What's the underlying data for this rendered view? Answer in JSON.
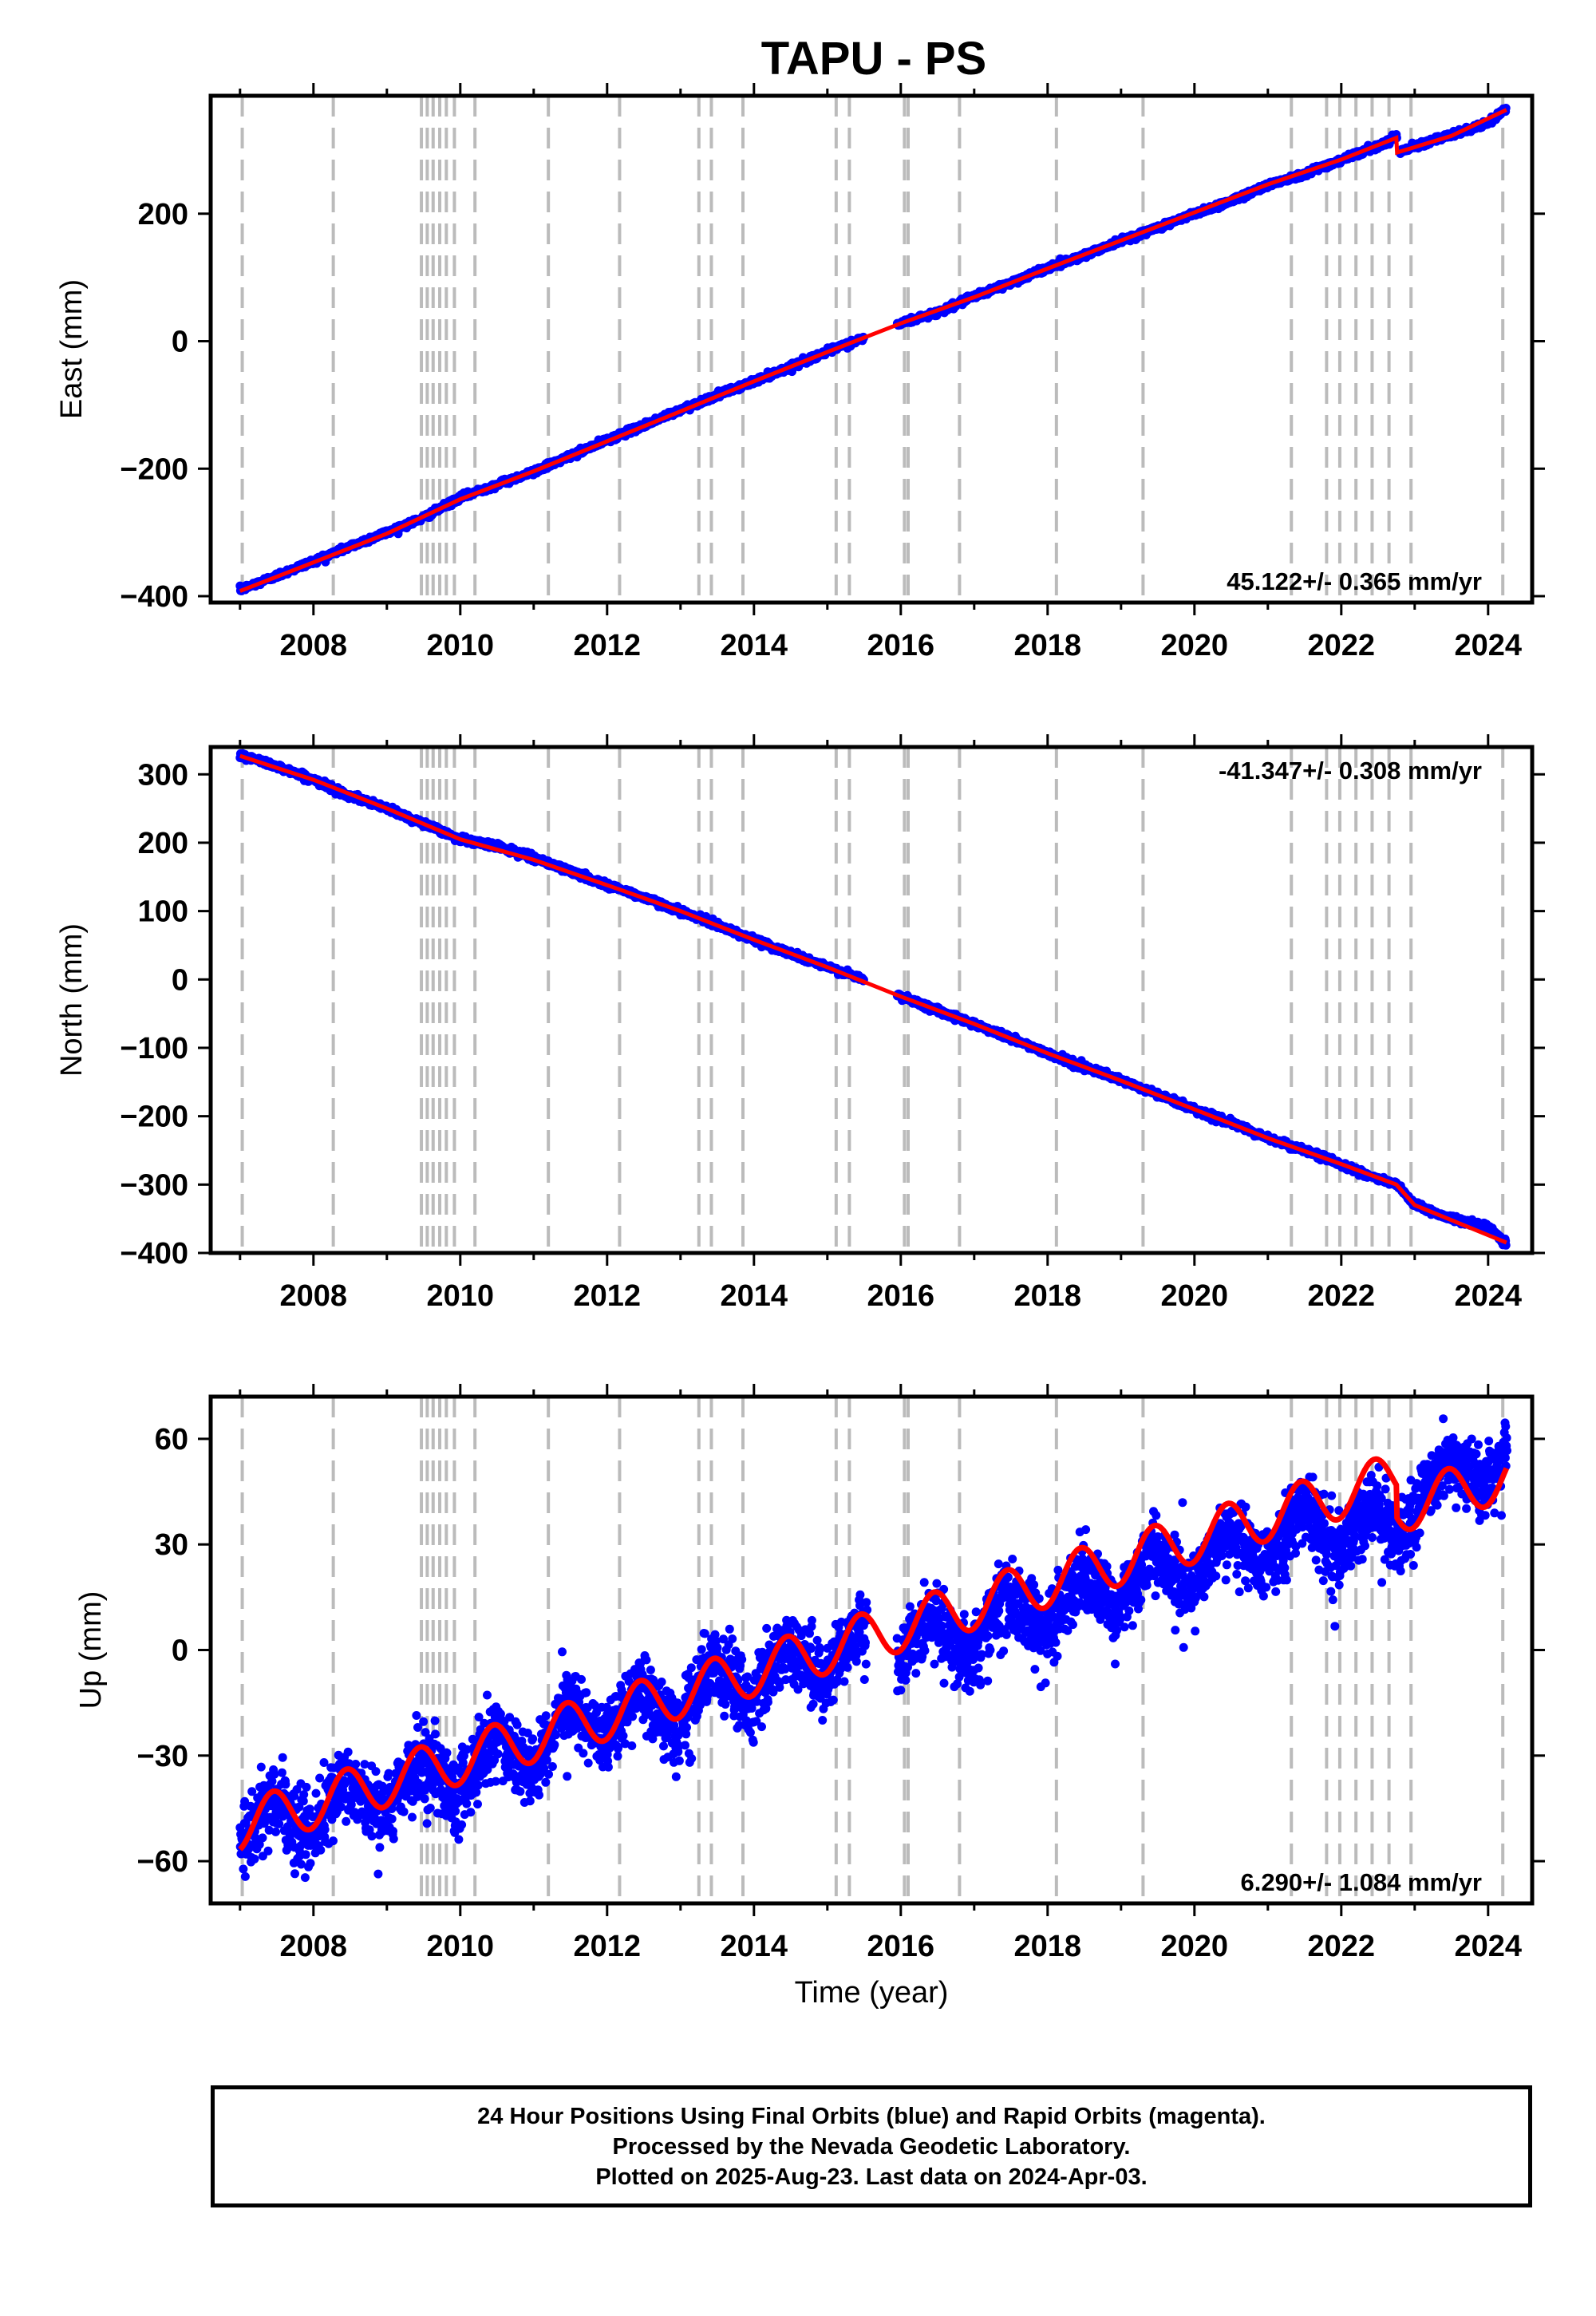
{
  "title": "TAPU - PS",
  "colors": {
    "final_orbits": "#0000ff",
    "model_fit": "#ff0000",
    "event_lines": "#bbbbbb",
    "frame": "#000000"
  },
  "chart_data": [
    {
      "type": "scatter",
      "panel": "east",
      "title": "",
      "xlabel": "",
      "ylabel": "East (mm)",
      "xlim": [
        2006.6,
        2024.6
      ],
      "ylim": [
        -410,
        385
      ],
      "x_ticks": [
        "2008",
        "2010",
        "2012",
        "2014",
        "2016",
        "2018",
        "2020",
        "2022",
        "2024"
      ],
      "y_ticks": [
        "200",
        "0",
        "−200",
        "−400"
      ],
      "grid": false,
      "rate_label": "45.122+/- 0.365 mm/yr",
      "rate_label_position": "bottom-right",
      "series": [
        {
          "role": "daily positions",
          "color": "#0000ff",
          "x": [
            2007.0,
            2007.5,
            2008.0,
            2008.5,
            2009.0,
            2009.5,
            2010.0,
            2010.5,
            2011.0,
            2011.5,
            2012.0,
            2012.5,
            2013.0,
            2013.5,
            2014.0,
            2014.5,
            2015.0,
            2015.5,
            2016.0,
            2016.5,
            2017.0,
            2017.5,
            2018.0,
            2018.5,
            2019.0,
            2019.5,
            2020.0,
            2020.5,
            2021.0,
            2021.5,
            2022.0,
            2022.5,
            2022.75,
            2022.8,
            2023.0,
            2023.5,
            2024.0,
            2024.25
          ],
          "y": [
            -390,
            -368,
            -345,
            -322,
            -300,
            -277,
            -245,
            -225,
            -205,
            -180,
            -155,
            -132,
            -108,
            -85,
            -63,
            -40,
            -16,
            5,
            28,
            45,
            70,
            92,
            115,
            135,
            158,
            178,
            200,
            220,
            245,
            263,
            285,
            306,
            322,
            297,
            307,
            323,
            342,
            366
          ]
        },
        {
          "role": "model fit",
          "color": "#ff0000",
          "x": [
            2007.0,
            2008.0,
            2009.0,
            2010.0,
            2011.0,
            2012.0,
            2013.0,
            2014.0,
            2015.0,
            2016.0,
            2017.0,
            2018.0,
            2019.0,
            2020.0,
            2021.0,
            2022.0,
            2022.75,
            2022.76,
            2023.5,
            2024.25
          ],
          "y": [
            -392,
            -347,
            -302,
            -248,
            -204,
            -157,
            -110,
            -63,
            -17,
            28,
            69,
            114,
            158,
            202,
            246,
            285,
            319,
            296,
            322,
            363
          ]
        }
      ]
    },
    {
      "type": "scatter",
      "panel": "north",
      "title": "",
      "xlabel": "",
      "ylabel": "North (mm)",
      "xlim": [
        2006.6,
        2024.6
      ],
      "ylim": [
        -400,
        340
      ],
      "x_ticks": [
        "2008",
        "2010",
        "2012",
        "2014",
        "2016",
        "2018",
        "2020",
        "2022",
        "2024"
      ],
      "y_ticks": [
        "300",
        "200",
        "100",
        "0",
        "−100",
        "−200",
        "−300",
        "−400"
      ],
      "grid": false,
      "rate_label": "-41.347+/- 0.308 mm/yr",
      "rate_label_position": "top-right",
      "series": [
        {
          "role": "daily positions",
          "color": "#0000ff",
          "x": [
            2007.0,
            2007.5,
            2008.0,
            2008.5,
            2009.0,
            2009.5,
            2010.0,
            2010.5,
            2011.0,
            2011.5,
            2012.0,
            2012.5,
            2013.0,
            2013.5,
            2014.0,
            2014.5,
            2015.0,
            2015.5,
            2016.0,
            2016.5,
            2017.0,
            2017.5,
            2018.0,
            2018.5,
            2019.0,
            2019.5,
            2020.0,
            2020.5,
            2021.0,
            2021.5,
            2022.0,
            2022.5,
            2022.75,
            2023.0,
            2023.5,
            2024.0,
            2024.25
          ],
          "y": [
            328,
            312,
            292,
            268,
            250,
            228,
            205,
            195,
            178,
            158,
            138,
            120,
            100,
            80,
            58,
            38,
            18,
            0,
            -25,
            -45,
            -65,
            -86,
            -108,
            -128,
            -148,
            -168,
            -190,
            -210,
            -232,
            -250,
            -270,
            -292,
            -300,
            -330,
            -350,
            -362,
            -386
          ]
        },
        {
          "role": "model fit",
          "color": "#ff0000",
          "x": [
            2007.0,
            2008.0,
            2009.0,
            2010.0,
            2011.0,
            2012.0,
            2013.0,
            2014.0,
            2015.0,
            2016.0,
            2017.0,
            2018.0,
            2019.0,
            2020.0,
            2021.0,
            2022.0,
            2022.75,
            2023.0,
            2024.25
          ],
          "y": [
            327,
            292,
            250,
            205,
            175,
            138,
            100,
            58,
            18,
            -25,
            -65,
            -108,
            -148,
            -190,
            -232,
            -270,
            -300,
            -330,
            -385
          ]
        }
      ]
    },
    {
      "type": "scatter",
      "panel": "up",
      "title": "",
      "xlabel": "Time (year)",
      "ylabel": "Up (mm)",
      "xlim": [
        2006.6,
        2024.6
      ],
      "ylim": [
        -72,
        72
      ],
      "x_ticks": [
        "2008",
        "2010",
        "2012",
        "2014",
        "2016",
        "2018",
        "2020",
        "2022",
        "2024"
      ],
      "y_ticks": [
        "60",
        "30",
        "0",
        "−30",
        "−60"
      ],
      "grid": false,
      "rate_label": "6.290+/- 1.084 mm/yr",
      "rate_label_position": "bottom-right",
      "series": [
        {
          "role": "daily positions",
          "color": "#0000ff",
          "trend_intercept_2007": -50,
          "trend_rate": 6.29,
          "annual_amplitude": 7,
          "scatter_mm": 5
        },
        {
          "role": "model fit",
          "color": "#ff0000",
          "trend_intercept_2007": -50,
          "trend_rate": 6.29,
          "annual_amplitude": 7,
          "x": [
            2007.0,
            2007.45,
            2007.95,
            2008.45,
            2008.95,
            2009.45,
            2009.95,
            2010.45,
            2010.95,
            2011.45,
            2011.95,
            2012.45,
            2012.95,
            2013.45,
            2013.95,
            2014.45,
            2014.95,
            2015.4,
            2015.95,
            2016.4,
            2016.95,
            2017.45,
            2017.95,
            2018.45,
            2018.95,
            2019.45,
            2019.95,
            2020.45,
            2020.95,
            2021.45,
            2021.95,
            2022.45,
            2022.75,
            2023.45,
            2023.95,
            2024.25
          ],
          "y": [
            -57,
            -42,
            -53,
            -37,
            -48,
            -31,
            -41,
            -24,
            -35,
            -15,
            -27,
            -11,
            -23,
            -4,
            -15,
            2,
            -9,
            7,
            -4,
            9,
            -2,
            15,
            4,
            22,
            11,
            28,
            17,
            34,
            24,
            39,
            28,
            41,
            30,
            55,
            45,
            58
          ]
        }
      ]
    }
  ],
  "event_line_years": [
    2007.03,
    2008.27,
    2009.47,
    2009.55,
    2009.63,
    2009.72,
    2009.81,
    2009.92,
    2010.2,
    2011.2,
    2012.17,
    2013.25,
    2013.42,
    2013.85,
    2015.12,
    2015.3,
    2016.05,
    2016.1,
    2016.8,
    2018.12,
    2019.3,
    2021.32,
    2021.8,
    2021.98,
    2022.2,
    2022.42,
    2022.65,
    2022.95,
    2024.2
  ],
  "footer": {
    "line1": "24 Hour Positions Using Final Orbits (blue) and Rapid Orbits (magenta).",
    "line2": "Processed by the Nevada Geodetic Laboratory.",
    "line3": "Plotted on 2025-Aug-23. Last data on 2024-Apr-03."
  }
}
